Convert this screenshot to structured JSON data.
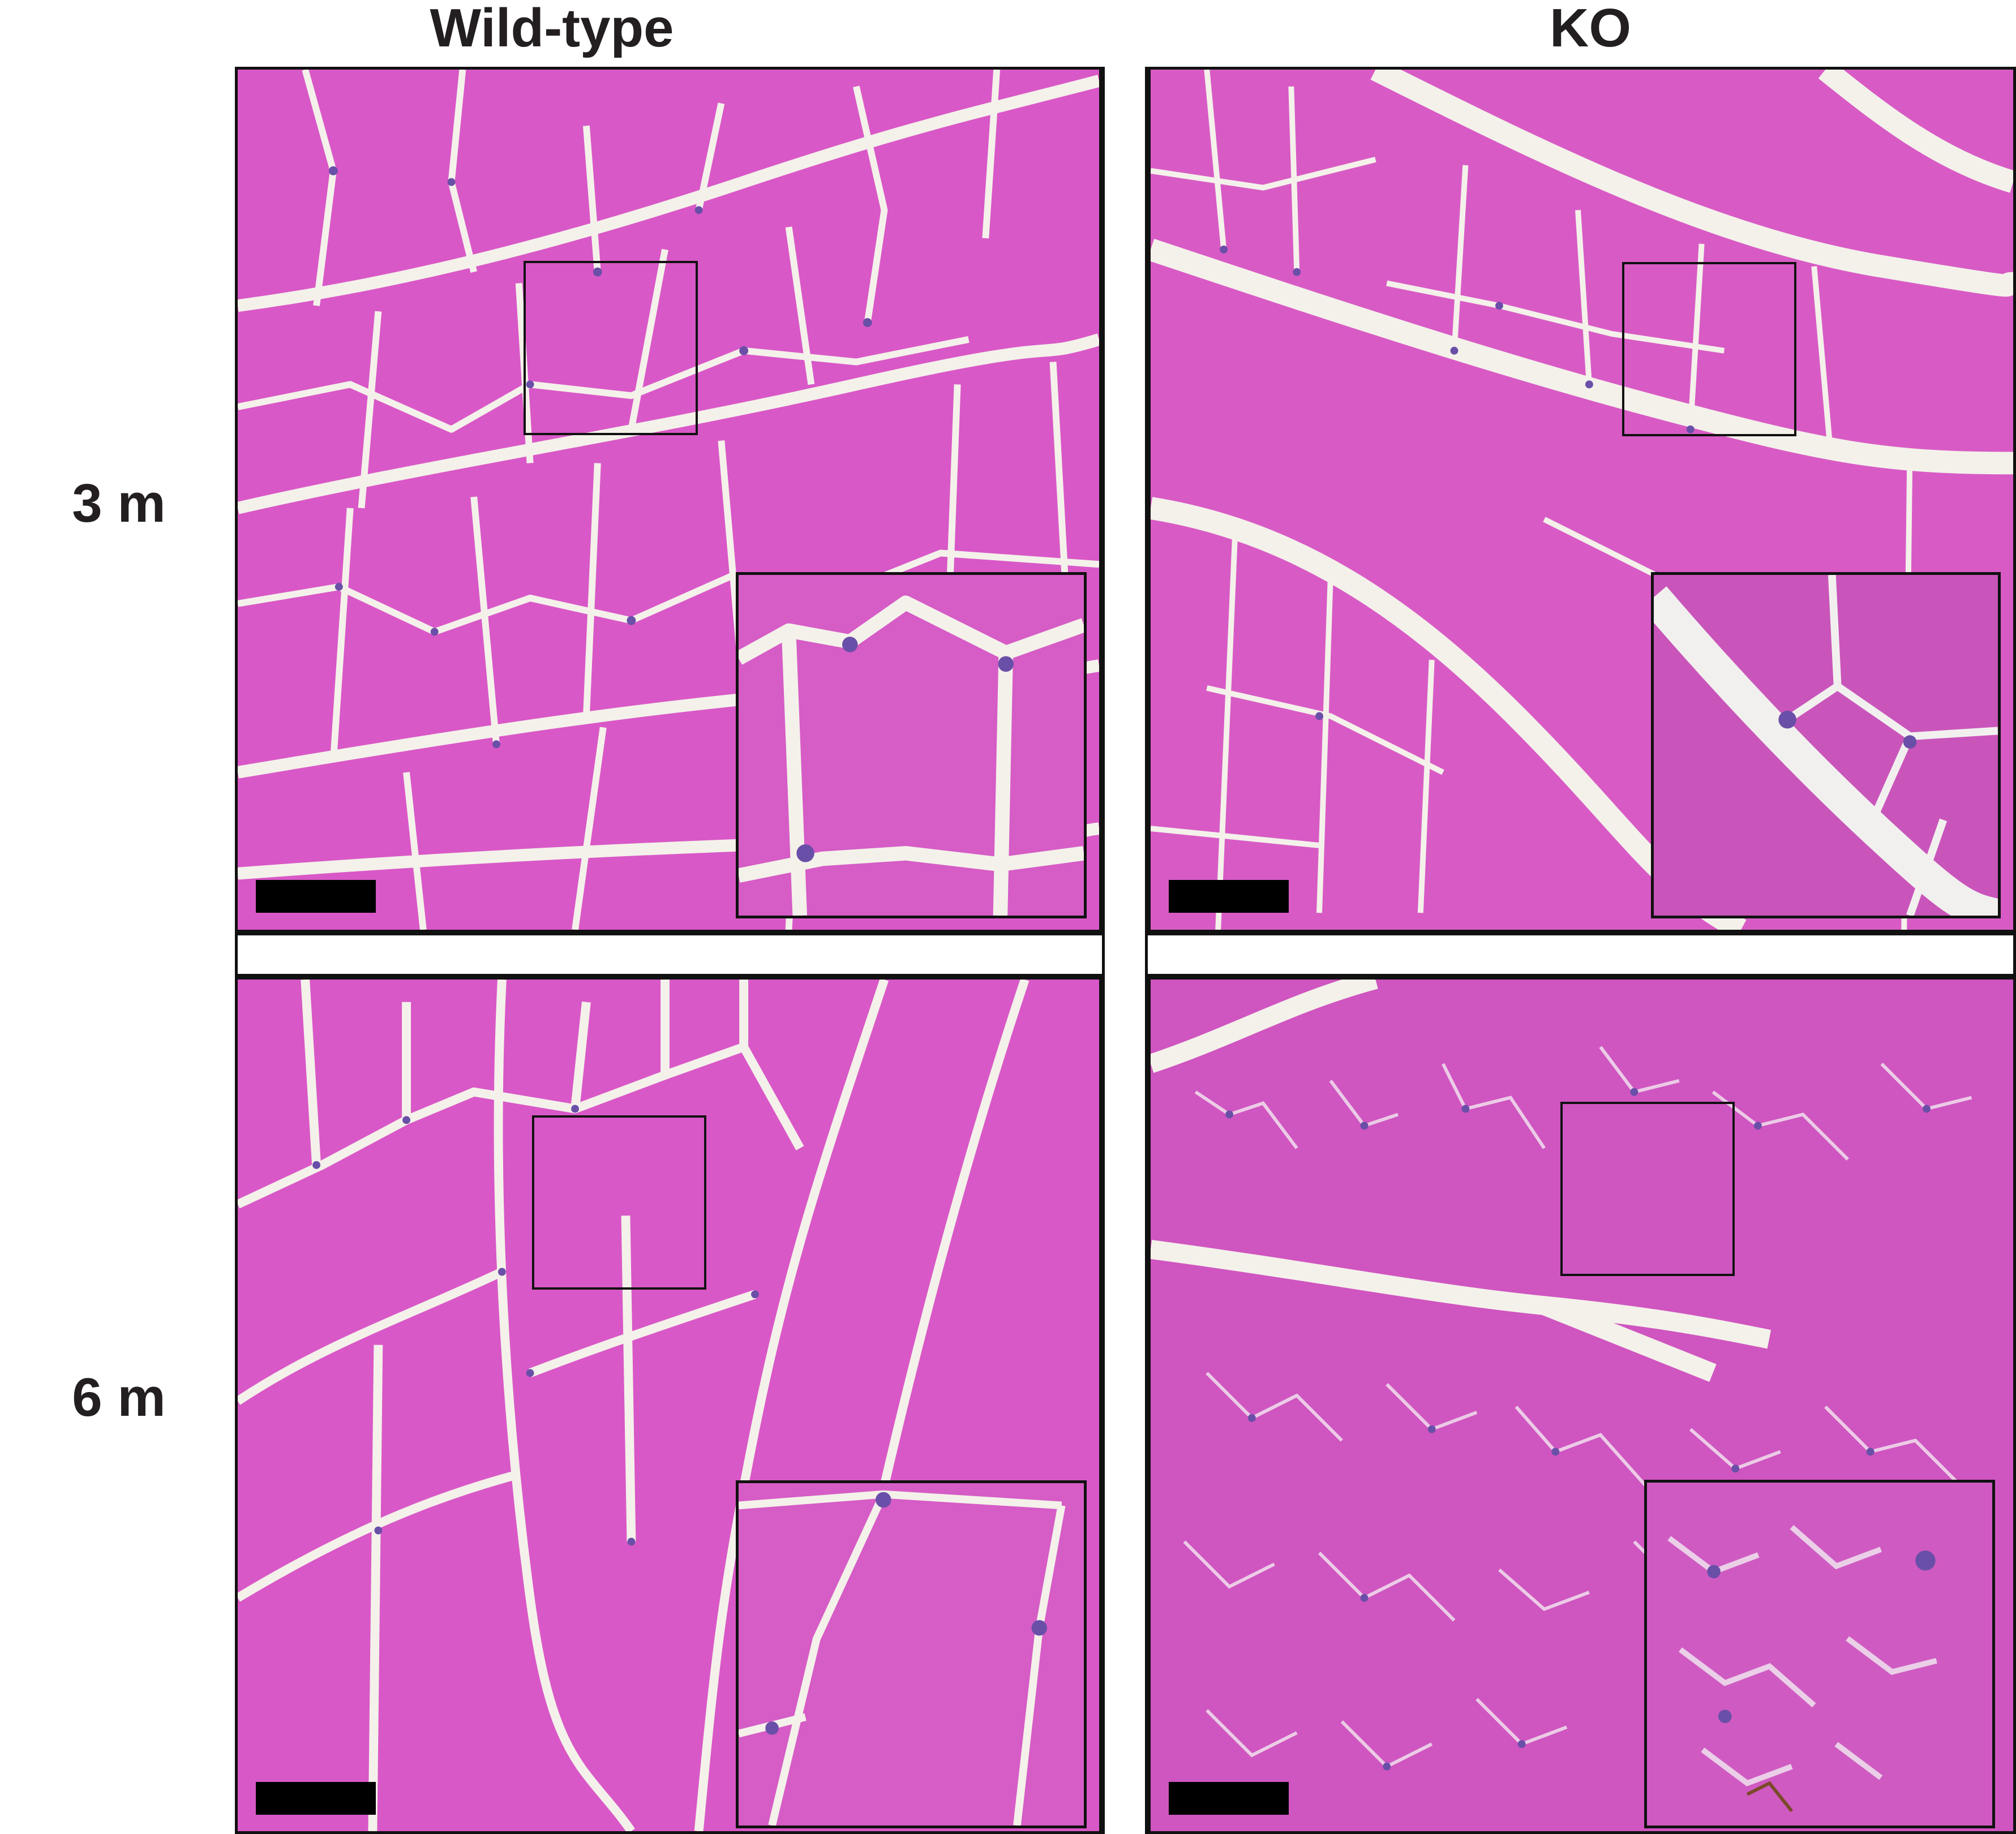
{
  "columns": {
    "left": "Wild-type",
    "right": "KO"
  },
  "rows": {
    "top": "3 m",
    "bottom": "6 m"
  },
  "panels": [
    {
      "id": "wt-3m",
      "genotype": "Wild-type",
      "age": "3 m",
      "has_zoom_box": true,
      "has_inset": true,
      "has_scale_bar": true
    },
    {
      "id": "ko-3m",
      "genotype": "KO",
      "age": "3 m",
      "has_zoom_box": true,
      "has_inset": true,
      "has_scale_bar": true
    },
    {
      "id": "wt-6m",
      "genotype": "Wild-type",
      "age": "6 m",
      "has_zoom_box": true,
      "has_inset": true,
      "has_scale_bar": true
    },
    {
      "id": "ko-6m",
      "genotype": "KO",
      "age": "6 m",
      "has_zoom_box": true,
      "has_inset": true,
      "has_scale_bar": true
    }
  ],
  "colors": {
    "fiber": "#d958c7",
    "fiber_ko": "#cf55c0",
    "gap": "#f4f1ea",
    "nucleus": "#6a4fa8",
    "border": "#111111"
  }
}
